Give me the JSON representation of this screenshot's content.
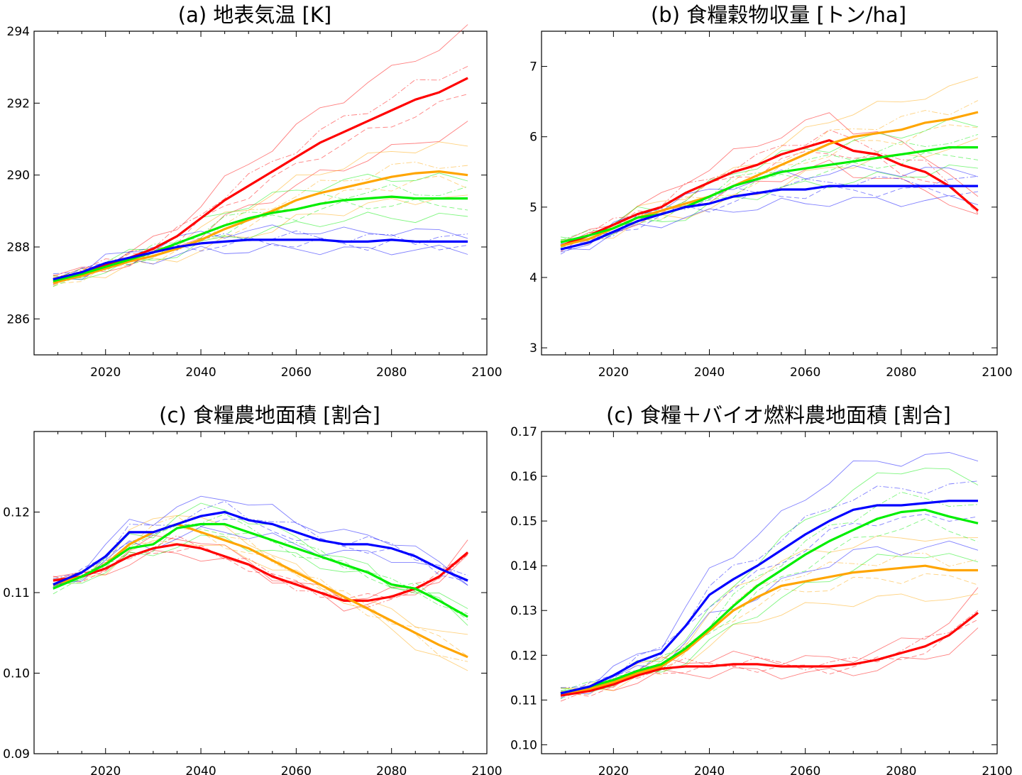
{
  "chart_data": [
    {
      "type": "line",
      "title": "(a) 地表気温 [K]",
      "xlabel": "",
      "ylabel": "",
      "xlim": [
        2005,
        2100
      ],
      "ylim": [
        285,
        294
      ],
      "xticks": [
        2020,
        2040,
        2060,
        2080,
        2100
      ],
      "yticks": [
        286,
        288,
        290,
        292,
        294
      ],
      "x": [
        2009,
        2015,
        2020,
        2025,
        2030,
        2035,
        2040,
        2045,
        2050,
        2055,
        2060,
        2065,
        2070,
        2075,
        2080,
        2085,
        2090,
        2096
      ],
      "series": [
        {
          "color": "#ff0000",
          "values": [
            287.1,
            287.3,
            287.5,
            287.7,
            287.95,
            288.3,
            288.8,
            289.3,
            289.7,
            290.1,
            290.5,
            290.9,
            291.2,
            291.5,
            291.8,
            292.1,
            292.3,
            292.7
          ]
        },
        {
          "color": "#ffa500",
          "values": [
            287.0,
            287.2,
            287.4,
            287.6,
            287.75,
            287.95,
            288.2,
            288.5,
            288.75,
            289.0,
            289.3,
            289.5,
            289.65,
            289.8,
            289.95,
            290.05,
            290.1,
            290.0
          ]
        },
        {
          "color": "#00ee00",
          "values": [
            287.05,
            287.25,
            287.45,
            287.65,
            287.85,
            288.1,
            288.35,
            288.6,
            288.8,
            288.95,
            289.05,
            289.2,
            289.3,
            289.35,
            289.4,
            289.35,
            289.35,
            289.35
          ]
        },
        {
          "color": "#0000ff",
          "values": [
            287.1,
            287.3,
            287.55,
            287.7,
            287.85,
            288.0,
            288.1,
            288.15,
            288.2,
            288.2,
            288.2,
            288.2,
            288.15,
            288.15,
            288.2,
            288.15,
            288.15,
            288.15
          ]
        }
      ]
    },
    {
      "type": "line",
      "title": "(b) 食糧穀物収量 [トン/ha]",
      "xlabel": "",
      "ylabel": "",
      "xlim": [
        2005,
        2100
      ],
      "ylim": [
        2.9,
        7.5
      ],
      "xticks": [
        2020,
        2040,
        2060,
        2080,
        2100
      ],
      "yticks": [
        3,
        4,
        5,
        6,
        7
      ],
      "x": [
        2009,
        2015,
        2020,
        2025,
        2030,
        2035,
        2040,
        2045,
        2050,
        2055,
        2060,
        2065,
        2070,
        2075,
        2080,
        2085,
        2090,
        2096
      ],
      "series": [
        {
          "color": "#ff0000",
          "values": [
            4.45,
            4.6,
            4.75,
            4.9,
            5.0,
            5.2,
            5.35,
            5.5,
            5.6,
            5.75,
            5.85,
            5.95,
            5.8,
            5.75,
            5.6,
            5.5,
            5.3,
            4.95
          ]
        },
        {
          "color": "#ffa500",
          "values": [
            4.45,
            4.55,
            4.7,
            4.85,
            4.95,
            5.05,
            5.15,
            5.3,
            5.45,
            5.6,
            5.75,
            5.9,
            6.0,
            6.05,
            6.1,
            6.2,
            6.25,
            6.35
          ]
        },
        {
          "color": "#00ee00",
          "values": [
            4.5,
            4.6,
            4.7,
            4.85,
            4.9,
            5.0,
            5.15,
            5.3,
            5.4,
            5.5,
            5.55,
            5.6,
            5.65,
            5.7,
            5.75,
            5.8,
            5.85,
            5.85
          ]
        },
        {
          "color": "#0000ff",
          "values": [
            4.4,
            4.5,
            4.65,
            4.8,
            4.9,
            5.0,
            5.05,
            5.15,
            5.2,
            5.25,
            5.25,
            5.3,
            5.3,
            5.3,
            5.3,
            5.3,
            5.3,
            5.3
          ]
        }
      ]
    },
    {
      "type": "line",
      "title": "(c) 食糧農地面積 [割合]",
      "xlabel": "",
      "ylabel": "",
      "xlim": [
        2005,
        2100
      ],
      "ylim": [
        0.09,
        0.13
      ],
      "xticks": [
        2020,
        2040,
        2060,
        2080,
        2100
      ],
      "yticks": [
        0.09,
        0.1,
        0.11,
        0.12
      ],
      "ytick_labels": [
        "0.09",
        "0.10",
        "0.11",
        "0.12"
      ],
      "x": [
        2009,
        2015,
        2020,
        2025,
        2030,
        2035,
        2040,
        2045,
        2050,
        2055,
        2060,
        2065,
        2070,
        2075,
        2080,
        2085,
        2090,
        2096
      ],
      "series": [
        {
          "color": "#ff0000",
          "values": [
            0.1115,
            0.112,
            0.113,
            0.1145,
            0.1155,
            0.116,
            0.1155,
            0.1145,
            0.1135,
            0.112,
            0.111,
            0.11,
            0.109,
            0.109,
            0.1095,
            0.1105,
            0.112,
            0.115
          ]
        },
        {
          "color": "#ffa500",
          "values": [
            0.111,
            0.112,
            0.1135,
            0.116,
            0.1175,
            0.1185,
            0.1175,
            0.1165,
            0.1155,
            0.114,
            0.1125,
            0.111,
            0.1095,
            0.108,
            0.1065,
            0.105,
            0.1035,
            0.102
          ]
        },
        {
          "color": "#00ee00",
          "values": [
            0.1105,
            0.112,
            0.1135,
            0.1155,
            0.116,
            0.118,
            0.1185,
            0.1185,
            0.1175,
            0.1165,
            0.1155,
            0.1145,
            0.1135,
            0.1125,
            0.111,
            0.1105,
            0.109,
            0.107
          ]
        },
        {
          "color": "#0000ff",
          "values": [
            0.111,
            0.1125,
            0.1145,
            0.1175,
            0.1175,
            0.1185,
            0.1195,
            0.12,
            0.119,
            0.1185,
            0.1175,
            0.1165,
            0.116,
            0.116,
            0.1155,
            0.1145,
            0.113,
            0.1115
          ]
        }
      ]
    },
    {
      "type": "line",
      "title": "(c) 食糧＋バイオ燃料農地面積 [割合]",
      "xlabel": "",
      "ylabel": "",
      "xlim": [
        2005,
        2100
      ],
      "ylim": [
        0.098,
        0.17
      ],
      "xticks": [
        2020,
        2040,
        2060,
        2080,
        2100
      ],
      "yticks": [
        0.1,
        0.11,
        0.12,
        0.13,
        0.14,
        0.15,
        0.16,
        0.17
      ],
      "ytick_labels": [
        "0.10",
        "0.11",
        "0.12",
        "0.13",
        "0.14",
        "0.15",
        "0.16",
        "0.17"
      ],
      "x": [
        2009,
        2015,
        2020,
        2025,
        2030,
        2035,
        2040,
        2045,
        2050,
        2055,
        2060,
        2065,
        2070,
        2075,
        2080,
        2085,
        2090,
        2096
      ],
      "series": [
        {
          "color": "#ff0000",
          "values": [
            0.111,
            0.112,
            0.1135,
            0.1155,
            0.117,
            0.1175,
            0.1175,
            0.118,
            0.118,
            0.1175,
            0.1175,
            0.1175,
            0.118,
            0.119,
            0.1205,
            0.122,
            0.1245,
            0.1295
          ]
        },
        {
          "color": "#ffa500",
          "values": [
            0.1115,
            0.1125,
            0.114,
            0.116,
            0.1175,
            0.121,
            0.1255,
            0.13,
            0.133,
            0.1355,
            0.1365,
            0.1375,
            0.1385,
            0.139,
            0.1395,
            0.14,
            0.139,
            0.139
          ]
        },
        {
          "color": "#00ee00",
          "values": [
            0.1115,
            0.113,
            0.1145,
            0.1165,
            0.118,
            0.1215,
            0.126,
            0.131,
            0.1355,
            0.139,
            0.1425,
            0.1455,
            0.148,
            0.1505,
            0.152,
            0.1525,
            0.151,
            0.1495
          ]
        },
        {
          "color": "#0000ff",
          "values": [
            0.1115,
            0.113,
            0.1155,
            0.1185,
            0.1205,
            0.1265,
            0.1335,
            0.137,
            0.14,
            0.1435,
            0.147,
            0.15,
            0.1525,
            0.1535,
            0.1535,
            0.154,
            0.1545,
            0.1545
          ]
        }
      ]
    }
  ]
}
